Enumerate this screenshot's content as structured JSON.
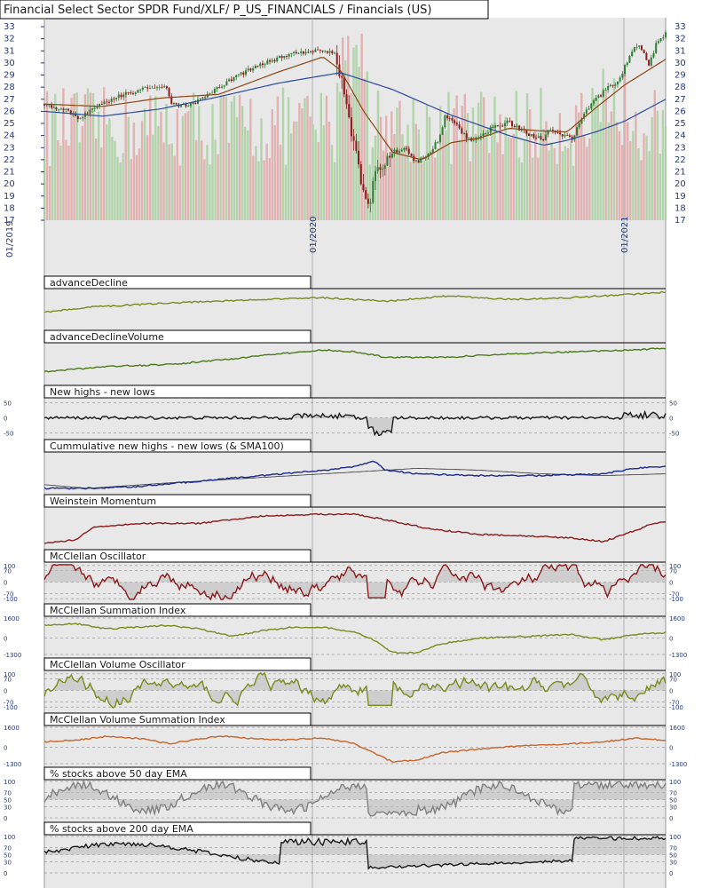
{
  "header": {
    "title": "Financial Select Sector SPDR Fund/XLF/ P_US_FINANCIALS / Financials (US)"
  },
  "colors": {
    "background": "#e8e8e8",
    "up_candle": "#2e7d32",
    "down_candle": "#8b1a1a",
    "sma_short": "#8b4513",
    "sma_long": "#2a4a9a",
    "volume_up": "#a8d0a0",
    "volume_down": "#e0a8a8",
    "orange_line": "#c8501e",
    "olive_line": "#7a8a1e",
    "green_line": "#4a7a1a",
    "dark_line": "#1a1a1a",
    "navy_line": "#1a2a8a",
    "darkred_line": "#8b1a1a",
    "orange2_line": "#c86428",
    "gray_line": "#808080"
  },
  "chart_data": [
    {
      "type": "candlestick",
      "title": "Financial Select Sector SPDR Fund/XLF/ P_US_FINANCIALS / Financials (US)",
      "ylim": [
        17,
        33
      ],
      "y_ticks": [
        17,
        18,
        19,
        20,
        21,
        22,
        23,
        24,
        25,
        26,
        27,
        28,
        29,
        30,
        31,
        32,
        33
      ],
      "x_tick_labels": [
        "01/2019",
        "01/2020",
        "01/2021"
      ],
      "price_path": [
        [
          0.0,
          26.6
        ],
        [
          0.04,
          26.0
        ],
        [
          0.06,
          25.3
        ],
        [
          0.09,
          26.5
        ],
        [
          0.13,
          27.3
        ],
        [
          0.17,
          27.8
        ],
        [
          0.21,
          28.1
        ],
        [
          0.22,
          26.6
        ],
        [
          0.25,
          26.5
        ],
        [
          0.27,
          27.0
        ],
        [
          0.31,
          28.3
        ],
        [
          0.35,
          29.4
        ],
        [
          0.39,
          30.2
        ],
        [
          0.43,
          30.8
        ],
        [
          0.47,
          31.1
        ],
        [
          0.5,
          30.8
        ],
        [
          0.51,
          29.2
        ],
        [
          0.52,
          27.0
        ],
        [
          0.53,
          24.0
        ],
        [
          0.545,
          20.6
        ],
        [
          0.555,
          17.8
        ],
        [
          0.57,
          20.5
        ],
        [
          0.6,
          22.6
        ],
        [
          0.62,
          23.0
        ],
        [
          0.64,
          21.8
        ],
        [
          0.66,
          22.3
        ],
        [
          0.68,
          23.8
        ],
        [
          0.69,
          25.6
        ],
        [
          0.71,
          24.8
        ],
        [
          0.73,
          23.6
        ],
        [
          0.75,
          23.9
        ],
        [
          0.77,
          24.6
        ],
        [
          0.8,
          25.1
        ],
        [
          0.82,
          24.5
        ],
        [
          0.84,
          24.0
        ],
        [
          0.86,
          23.6
        ],
        [
          0.87,
          24.6
        ],
        [
          0.89,
          24.0
        ],
        [
          0.91,
          23.8
        ],
        [
          0.93,
          25.8
        ],
        [
          0.95,
          27.0
        ],
        [
          0.97,
          27.9
        ],
        [
          0.99,
          28.5
        ],
        [
          1.0,
          29.7
        ],
        [
          1.02,
          31.5
        ],
        [
          1.03,
          31.0
        ],
        [
          1.04,
          29.8
        ],
        [
          1.055,
          31.7
        ],
        [
          1.07,
          32.4
        ]
      ],
      "sma_short": [
        [
          0,
          26.6
        ],
        [
          0.1,
          26.4
        ],
        [
          0.2,
          27.1
        ],
        [
          0.3,
          27.4
        ],
        [
          0.4,
          29.2
        ],
        [
          0.48,
          30.5
        ],
        [
          0.51,
          29.4
        ],
        [
          0.55,
          26.0
        ],
        [
          0.6,
          22.6
        ],
        [
          0.65,
          22.0
        ],
        [
          0.7,
          23.4
        ],
        [
          0.75,
          23.8
        ],
        [
          0.8,
          24.6
        ],
        [
          0.85,
          24.4
        ],
        [
          0.9,
          24.3
        ],
        [
          0.95,
          26.3
        ],
        [
          1.0,
          28.2
        ],
        [
          1.07,
          30.3
        ]
      ],
      "sma_long": [
        [
          0,
          26.0
        ],
        [
          0.1,
          25.6
        ],
        [
          0.2,
          26.2
        ],
        [
          0.3,
          27.2
        ],
        [
          0.4,
          28.3
        ],
        [
          0.51,
          29.2
        ],
        [
          0.6,
          27.8
        ],
        [
          0.7,
          25.7
        ],
        [
          0.8,
          24.0
        ],
        [
          0.86,
          23.2
        ],
        [
          0.9,
          23.6
        ],
        [
          0.95,
          24.3
        ],
        [
          1.0,
          25.2
        ],
        [
          1.07,
          27.0
        ]
      ]
    },
    {
      "type": "line",
      "title": "advanceDecline",
      "path": [
        [
          0,
          0.6
        ],
        [
          0.08,
          0.45
        ],
        [
          0.2,
          0.35
        ],
        [
          0.35,
          0.25
        ],
        [
          0.45,
          0.2
        ],
        [
          0.55,
          0.3
        ],
        [
          0.65,
          0.15
        ],
        [
          0.75,
          0.25
        ],
        [
          0.85,
          0.2
        ],
        [
          0.95,
          0.1
        ],
        [
          1.0,
          0.05
        ]
      ]
    },
    {
      "type": "line",
      "title": "advanceDeclineVolume",
      "path": [
        [
          0,
          0.75
        ],
        [
          0.1,
          0.6
        ],
        [
          0.2,
          0.55
        ],
        [
          0.3,
          0.4
        ],
        [
          0.35,
          0.3
        ],
        [
          0.45,
          0.15
        ],
        [
          0.5,
          0.2
        ],
        [
          0.55,
          0.35
        ],
        [
          0.65,
          0.35
        ],
        [
          0.75,
          0.25
        ],
        [
          0.85,
          0.2
        ],
        [
          0.95,
          0.15
        ],
        [
          1.0,
          0.1
        ]
      ]
    },
    {
      "type": "oscillator",
      "title": "New highs - new lows",
      "y_ticks": [
        50,
        0,
        -50
      ],
      "range": [
        -60,
        60
      ]
    },
    {
      "type": "line",
      "title": "Cummulative new highs - new lows (& SMA100)",
      "path": [
        [
          0,
          0.95
        ],
        [
          0.07,
          0.95
        ],
        [
          0.15,
          0.9
        ],
        [
          0.25,
          0.75
        ],
        [
          0.35,
          0.6
        ],
        [
          0.45,
          0.45
        ],
        [
          0.5,
          0.35
        ],
        [
          0.53,
          0.2
        ],
        [
          0.55,
          0.45
        ],
        [
          0.6,
          0.55
        ],
        [
          0.7,
          0.6
        ],
        [
          0.8,
          0.6
        ],
        [
          0.9,
          0.55
        ],
        [
          0.95,
          0.4
        ],
        [
          1.0,
          0.35
        ]
      ],
      "sma": [
        [
          0,
          0.85
        ],
        [
          0.07,
          0.95
        ],
        [
          0.2,
          0.8
        ],
        [
          0.35,
          0.65
        ],
        [
          0.5,
          0.5
        ],
        [
          0.6,
          0.4
        ],
        [
          0.7,
          0.45
        ],
        [
          0.8,
          0.55
        ],
        [
          0.9,
          0.6
        ],
        [
          1.0,
          0.55
        ]
      ]
    },
    {
      "type": "line",
      "title": "Weinstein Momentum",
      "path": [
        [
          0,
          0.95
        ],
        [
          0.05,
          0.85
        ],
        [
          0.08,
          0.5
        ],
        [
          0.15,
          0.4
        ],
        [
          0.25,
          0.4
        ],
        [
          0.35,
          0.2
        ],
        [
          0.45,
          0.15
        ],
        [
          0.5,
          0.15
        ],
        [
          0.55,
          0.3
        ],
        [
          0.62,
          0.55
        ],
        [
          0.7,
          0.7
        ],
        [
          0.78,
          0.75
        ],
        [
          0.85,
          0.8
        ],
        [
          0.9,
          0.9
        ],
        [
          0.95,
          0.6
        ],
        [
          0.98,
          0.4
        ],
        [
          1.0,
          0.35
        ]
      ]
    },
    {
      "type": "oscillator",
      "title": "McClellan Oscillator",
      "y_ticks": [
        100,
        70,
        0,
        -70,
        -100
      ],
      "range": [
        -110,
        110
      ]
    },
    {
      "type": "line",
      "title": "McClellan Summation Index",
      "y_ticks": [
        1600,
        0,
        -1300
      ],
      "path": [
        [
          0,
          0.2
        ],
        [
          0.05,
          0.15
        ],
        [
          0.1,
          0.3
        ],
        [
          0.2,
          0.2
        ],
        [
          0.25,
          0.3
        ],
        [
          0.3,
          0.5
        ],
        [
          0.35,
          0.35
        ],
        [
          0.4,
          0.25
        ],
        [
          0.45,
          0.25
        ],
        [
          0.5,
          0.4
        ],
        [
          0.53,
          0.6
        ],
        [
          0.56,
          0.95
        ],
        [
          0.6,
          0.95
        ],
        [
          0.64,
          0.7
        ],
        [
          0.7,
          0.55
        ],
        [
          0.78,
          0.5
        ],
        [
          0.85,
          0.45
        ],
        [
          0.9,
          0.6
        ],
        [
          0.95,
          0.45
        ],
        [
          1.0,
          0.4
        ]
      ]
    },
    {
      "type": "oscillator",
      "title": "McClellan Volume Oscillator",
      "y_ticks": [
        100,
        70,
        0,
        -70,
        -100
      ],
      "range": [
        -110,
        110
      ]
    },
    {
      "type": "line",
      "title": "McClellan Volume Summation Index",
      "y_ticks": [
        1600,
        0,
        -1300
      ],
      "path": [
        [
          0,
          0.4
        ],
        [
          0.05,
          0.35
        ],
        [
          0.1,
          0.25
        ],
        [
          0.15,
          0.3
        ],
        [
          0.2,
          0.45
        ],
        [
          0.28,
          0.25
        ],
        [
          0.33,
          0.3
        ],
        [
          0.38,
          0.35
        ],
        [
          0.45,
          0.3
        ],
        [
          0.5,
          0.45
        ],
        [
          0.53,
          0.7
        ],
        [
          0.56,
          0.95
        ],
        [
          0.6,
          0.9
        ],
        [
          0.64,
          0.7
        ],
        [
          0.7,
          0.6
        ],
        [
          0.78,
          0.5
        ],
        [
          0.85,
          0.45
        ],
        [
          0.9,
          0.4
        ],
        [
          0.95,
          0.3
        ],
        [
          1.0,
          0.35
        ]
      ]
    },
    {
      "type": "oscillator",
      "title": "% stocks above 50 day EMA",
      "y_ticks": [
        100,
        70,
        50,
        30,
        0
      ],
      "range": [
        0,
        100
      ]
    },
    {
      "type": "oscillator",
      "title": "% stocks above 200 day EMA",
      "y_ticks": [
        100,
        70,
        50,
        30,
        0
      ],
      "range": [
        0,
        100
      ]
    }
  ]
}
